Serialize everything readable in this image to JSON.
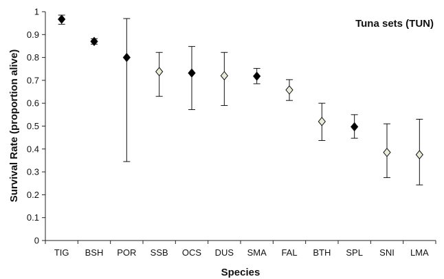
{
  "chart_data": {
    "type": "scatter",
    "title": "",
    "annotation": "Tuna sets (TUN)",
    "xlabel": "Species",
    "ylabel": "Survival Rate (proportion alive)",
    "ylim": [
      0,
      1
    ],
    "yticks": [
      "0",
      "0.1",
      "0.2",
      "0.3",
      "0.4",
      "0.5",
      "0.6",
      "0.7",
      "0.8",
      "0.9",
      "1"
    ],
    "ytick_values": [
      0,
      0.1,
      0.2,
      0.3,
      0.4,
      0.5,
      0.6,
      0.7,
      0.8,
      0.9,
      1.0
    ],
    "grid": false,
    "legend": "none",
    "marker_colors": {
      "dark": "#000000",
      "light": "#e8ecd8",
      "stroke": "#111111"
    },
    "categories": [
      "TIG",
      "BSH",
      "POR",
      "SSB",
      "OCS",
      "DUS",
      "SMA",
      "FAL",
      "BTH",
      "SPL",
      "SNI",
      "LMA"
    ],
    "points": [
      {
        "species": "TIG",
        "value": 0.967,
        "lower": 0.945,
        "upper": 0.985,
        "marker": "dark"
      },
      {
        "species": "BSH",
        "value": 0.87,
        "lower": 0.858,
        "upper": 0.882,
        "marker": "dark"
      },
      {
        "species": "POR",
        "value": 0.8,
        "lower": 0.345,
        "upper": 0.97,
        "marker": "dark"
      },
      {
        "species": "SSB",
        "value": 0.738,
        "lower": 0.63,
        "upper": 0.822,
        "marker": "light"
      },
      {
        "species": "OCS",
        "value": 0.732,
        "lower": 0.572,
        "upper": 0.848,
        "marker": "dark"
      },
      {
        "species": "DUS",
        "value": 0.72,
        "lower": 0.59,
        "upper": 0.822,
        "marker": "light"
      },
      {
        "species": "SMA",
        "value": 0.718,
        "lower": 0.685,
        "upper": 0.752,
        "marker": "dark"
      },
      {
        "species": "FAL",
        "value": 0.658,
        "lower": 0.612,
        "upper": 0.703,
        "marker": "light"
      },
      {
        "species": "BTH",
        "value": 0.52,
        "lower": 0.437,
        "upper": 0.6,
        "marker": "light"
      },
      {
        "species": "SPL",
        "value": 0.497,
        "lower": 0.447,
        "upper": 0.55,
        "marker": "dark"
      },
      {
        "species": "SNI",
        "value": 0.385,
        "lower": 0.275,
        "upper": 0.51,
        "marker": "light"
      },
      {
        "species": "LMA",
        "value": 0.375,
        "lower": 0.243,
        "upper": 0.53,
        "marker": "light"
      }
    ]
  }
}
